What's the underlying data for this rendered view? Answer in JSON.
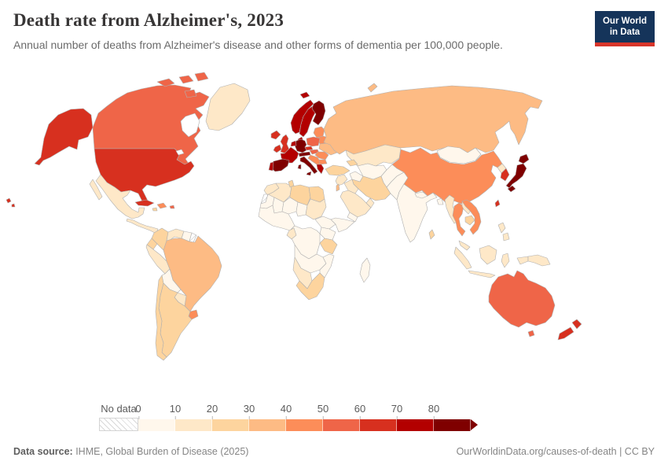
{
  "header": {
    "title": "Death rate from Alzheimer's, 2023",
    "subtitle": "Annual number of deaths from Alzheimer's disease and other forms of dementia per 100,000 people.",
    "logo": {
      "line1": "Our World",
      "line2": "in Data"
    }
  },
  "legend": {
    "no_data_label": "No data",
    "tick_labels": [
      "0",
      "10",
      "20",
      "30",
      "40",
      "50",
      "60",
      "70",
      "80"
    ],
    "bin_ranges": [
      "0-10",
      "10-20",
      "20-30",
      "30-40",
      "40-50",
      "50-60",
      "60-70",
      "70-80",
      "80+"
    ],
    "bin_colors": [
      "#fff7ec",
      "#fee8c8",
      "#fdd49e",
      "#fdbb84",
      "#fc8d59",
      "#ef6548",
      "#d7301f",
      "#b30000",
      "#7f0000"
    ],
    "no_data_fill": "hatched"
  },
  "footer": {
    "source_label": "Data source:",
    "source_text": " IHME, Global Burden of Disease (2025)",
    "credit": "OurWorldinData.org/causes-of-death | CC BY"
  },
  "chart_data": {
    "type": "heatmap",
    "subtype": "world-choropleth",
    "title": "Death rate from Alzheimer's, 2023",
    "unit": "deaths per 100,000 people",
    "year": "2023",
    "legend_bins": [
      "0-10",
      "10-20",
      "20-30",
      "30-40",
      "40-50",
      "50-60",
      "60-70",
      "70-80",
      "80+"
    ],
    "country_values": {
      "United States": "60-70",
      "Canada": "50-60",
      "Greenland": "10-20",
      "Mexico": "10-20",
      "Central America": "10-20",
      "Cuba": "60-70",
      "Hispaniola": "40-50",
      "Jamaica": "20-30",
      "Puerto Rico": "50-60",
      "Colombia": "20-30",
      "Venezuela": "10-20",
      "Guyana & Suriname": "0-10",
      "French Guiana": "No data",
      "Ecuador": "20-30",
      "Peru": "10-20",
      "Brazil": "30-40",
      "Bolivia": "0-10",
      "Paraguay": "10-20",
      "Uruguay": "40-50",
      "Argentina": "20-30",
      "Chile": "20-30",
      "Iceland": "60-70",
      "United Kingdom": "60-70",
      "Ireland": "60-70",
      "Norway": "70-80",
      "Sweden": "70-80",
      "Finland": "80+",
      "Denmark": "70-80",
      "Baltic states": "40-50",
      "Belarus": "40-50",
      "Ukraine": "30-40",
      "Poland": "50-60",
      "Czechia": "60-70",
      "Slovakia & Hungary": "50-60",
      "Germany": "80+",
      "Netherlands & Belgium": "70-80",
      "France": "70-80",
      "Switzerland & Austria": "80+",
      "Italy": "80+",
      "Spain": "80+",
      "Portugal": "70-80",
      "Balkans": "40-50",
      "Romania": "40-50",
      "Bulgaria": "40-50",
      "Greece": "70-80",
      "Turkey": "20-30",
      "Caucasus": "20-30",
      "Russia": "30-40",
      "Kazakhstan": "10-20",
      "Turkmenistan": "0-10",
      "Uzbekistan": "0-10",
      "Kyrgyzstan & Tajikistan": "0-10",
      "Iran": "20-30",
      "Iraq": "10-20",
      "Saudi Arabia": "10-20",
      "Yemen": "0-10",
      "Oman": "10-20",
      "Syria & Jordan": "10-20",
      "Israel": "30-40",
      "Afghanistan": "0-10",
      "Pakistan": "0-10",
      "India": "0-10",
      "Nepal": "0-10",
      "Bangladesh": "0-10",
      "Sri Lanka": "20-30",
      "China": "40-50",
      "Mongolia": "0-10",
      "North Korea": "10-20",
      "South Korea": "60-70",
      "Japan": "80+",
      "Taiwan": "60-70",
      "Myanmar": "10-20",
      "Thailand": "40-50",
      "Laos": "10-20",
      "Cambodia": "20-30",
      "Vietnam": "40-50",
      "Malaysia": "10-20",
      "Indonesia": "10-20",
      "Philippines": "10-20",
      "Papua New Guinea": "10-20",
      "Australia": "50-60",
      "New Zealand": "60-70",
      "Morocco": "10-20",
      "Western Sahara": "No data",
      "Algeria": "10-20",
      "Tunisia": "20-30",
      "Libya": "20-30",
      "Egypt": "20-30",
      "Mauritania": "0-10",
      "Mali": "0-10",
      "Niger": "0-10",
      "Chad": "0-10",
      "Sudan": "10-20",
      "West Africa": "0-10",
      "Ethiopia": "0-10",
      "Somalia": "0-10",
      "Kenya & Uganda": "0-10",
      "Tanzania": "20-30",
      "DR Congo": "0-10",
      "Gabon & Congo": "10-20",
      "Angola & Zambia": "0-10",
      "Mozambique & Zimbabwe": "0-10",
      "Namibia & Botswana": "10-20",
      "South Africa": "20-30",
      "Madagascar": "0-10"
    }
  }
}
